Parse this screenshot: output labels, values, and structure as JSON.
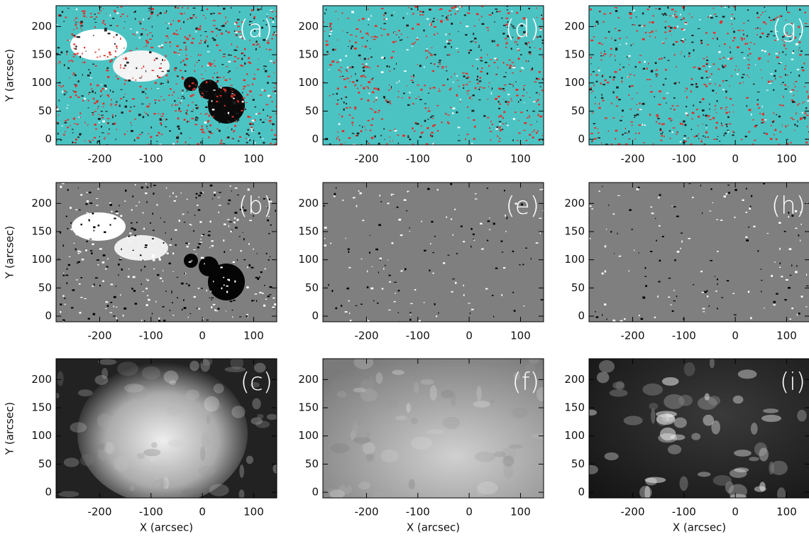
{
  "chart_data": [
    {
      "type": "image",
      "panel_label": "(a)",
      "ylabel": "Y (arcsec)",
      "xlim": [
        -285,
        145
      ],
      "ylim": [
        -10,
        237
      ],
      "xticks": [
        -200,
        -100,
        0,
        100
      ],
      "yticks": [
        0,
        50,
        100,
        150,
        200
      ]
    },
    {
      "type": "image",
      "panel_label": "(b)",
      "ylabel": "Y (arcsec)",
      "xlim": [
        -285,
        145
      ],
      "ylim": [
        -10,
        237
      ],
      "xticks": [
        -200,
        -100,
        0,
        100
      ],
      "yticks": [
        0,
        50,
        100,
        150,
        200
      ]
    },
    {
      "type": "image",
      "panel_label": "(c)",
      "ylabel": "Y (arcsec)",
      "xlabel": "X (arcsec)",
      "xlim": [
        -285,
        145
      ],
      "ylim": [
        -10,
        237
      ],
      "xticks": [
        -200,
        -100,
        0,
        100
      ],
      "yticks": [
        0,
        50,
        100,
        150,
        200
      ]
    },
    {
      "type": "image",
      "panel_label": "(d)",
      "xlim": [
        -285,
        145
      ],
      "ylim": [
        -10,
        237
      ],
      "xticks": [
        -200,
        -100,
        0,
        100
      ],
      "yticks": [
        0,
        50,
        100,
        150,
        200
      ]
    },
    {
      "type": "image",
      "panel_label": "(e)",
      "xlim": [
        -285,
        145
      ],
      "ylim": [
        -10,
        237
      ],
      "xticks": [
        -200,
        -100,
        0,
        100
      ],
      "yticks": [
        0,
        50,
        100,
        150,
        200
      ]
    },
    {
      "type": "image",
      "panel_label": "(f)",
      "xlabel": "X (arcsec)",
      "xlim": [
        -285,
        145
      ],
      "ylim": [
        -10,
        237
      ],
      "xticks": [
        -200,
        -100,
        0,
        100
      ],
      "yticks": [
        0,
        50,
        100,
        150,
        200
      ]
    },
    {
      "type": "image",
      "panel_label": "(g)",
      "xlim": [
        -285,
        145
      ],
      "ylim": [
        -10,
        237
      ],
      "xticks": [
        -200,
        -100,
        0,
        100
      ],
      "yticks": [
        0,
        50,
        100,
        150,
        200
      ]
    },
    {
      "type": "image",
      "panel_label": "(h)",
      "xlim": [
        -285,
        145
      ],
      "ylim": [
        -10,
        237
      ],
      "xticks": [
        -200,
        -100,
        0,
        100
      ],
      "yticks": [
        0,
        50,
        100,
        150,
        200
      ]
    },
    {
      "type": "image",
      "panel_label": "(i)",
      "xlabel": "X (arcsec)",
      "xlim": [
        -285,
        145
      ],
      "ylim": [
        -10,
        237
      ],
      "xticks": [
        -200,
        -100,
        0,
        100
      ],
      "yticks": [
        0,
        50,
        100,
        150,
        200
      ]
    }
  ]
}
